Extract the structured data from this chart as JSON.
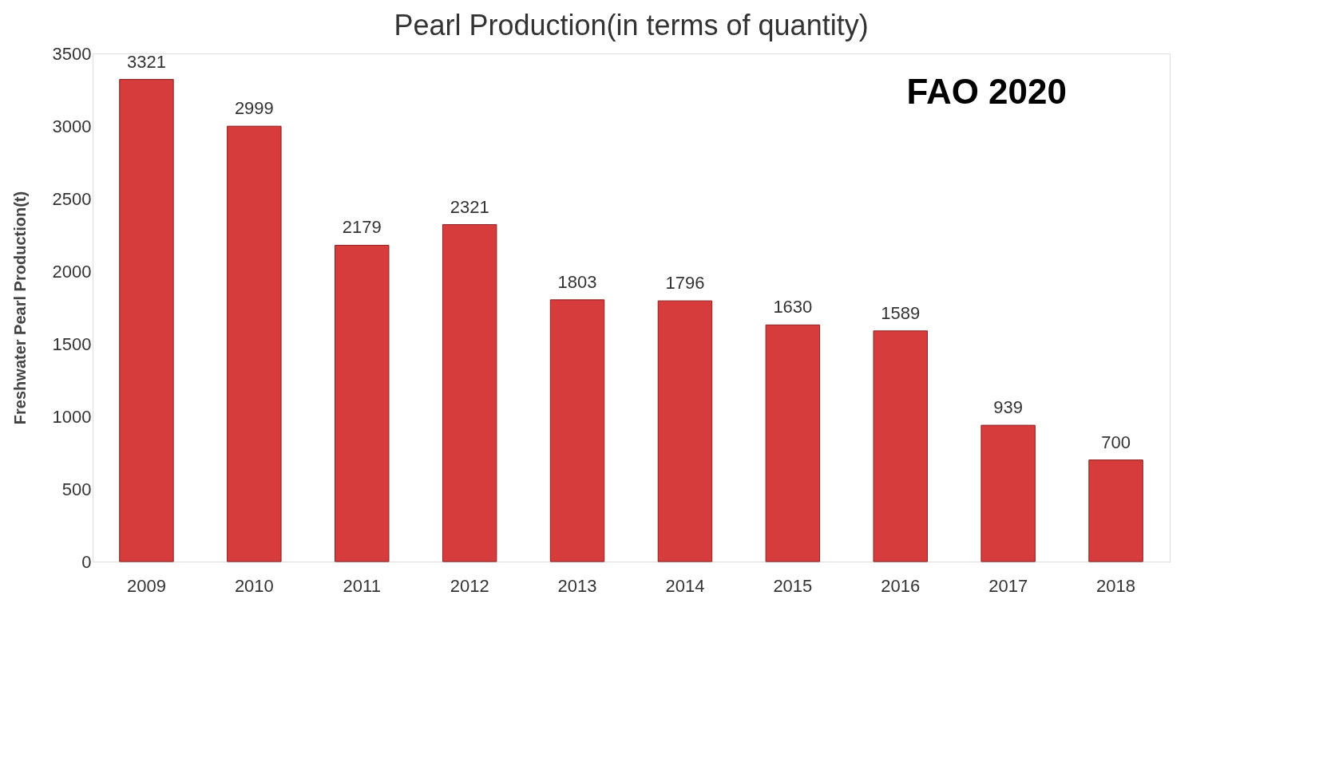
{
  "chart_data": {
    "type": "bar",
    "title": "Pearl Production(in terms of quantity)",
    "ylabel": "Freshwater Pearl Production(t)",
    "categories": [
      "2009",
      "2010",
      "2011",
      "2012",
      "2013",
      "2014",
      "2015",
      "2016",
      "2017",
      "2018"
    ],
    "values": [
      3321,
      2999,
      2179,
      2321,
      1803,
      1796,
      1630,
      1589,
      939,
      700
    ],
    "color": "#d63c3c",
    "ylim": [
      0,
      3500
    ],
    "yticks": [
      0,
      500,
      1000,
      1500,
      2000,
      2500,
      3000,
      3500
    ],
    "grid": false,
    "data_labels": true,
    "annotations": [
      "FAO 2020"
    ]
  }
}
